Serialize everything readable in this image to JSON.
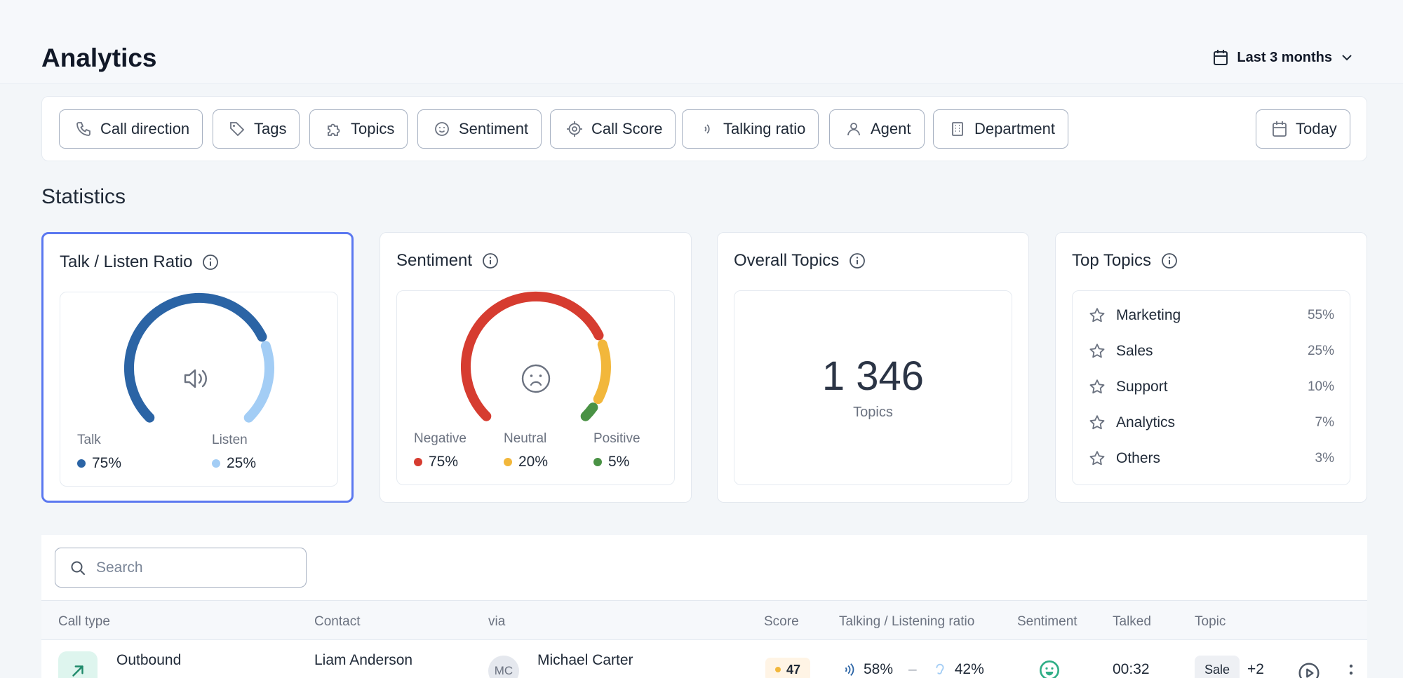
{
  "header": {
    "title": "Analytics",
    "range_label": "Last 3 months"
  },
  "filters": {
    "chips": [
      {
        "label": "Call direction",
        "icon": "phone-icon"
      },
      {
        "label": "Tags",
        "icon": "tag-icon"
      },
      {
        "label": "Topics",
        "icon": "puzzle-icon"
      },
      {
        "label": "Sentiment",
        "icon": "smiley-icon"
      },
      {
        "label": "Call Score",
        "icon": "target-icon"
      },
      {
        "label": "Talking ratio",
        "icon": "sound-waves-icon"
      },
      {
        "label": "Agent",
        "icon": "user-icon"
      },
      {
        "label": "Department",
        "icon": "building-icon"
      }
    ],
    "date_label": "Today"
  },
  "statistics": {
    "title": "Statistics",
    "talk_listen": {
      "title": "Talk / Listen Ratio",
      "talk_label": "Talk",
      "talk_value": "75%",
      "talk_fraction": 0.75,
      "listen_label": "Listen",
      "listen_value": "25%",
      "listen_fraction": 0.25,
      "colors": {
        "talk": "#2b64a5",
        "listen": "#a3cdf5"
      }
    },
    "sentiment": {
      "title": "Sentiment",
      "negative_label": "Negative",
      "negative_value": "75%",
      "negative_fraction": 0.75,
      "neutral_label": "Neutral",
      "neutral_value": "20%",
      "neutral_fraction": 0.2,
      "positive_label": "Positive",
      "positive_value": "5%",
      "positive_fraction": 0.05,
      "colors": {
        "negative": "#d63c30",
        "neutral": "#f2b73b",
        "positive": "#4a9245"
      }
    },
    "overall_topics": {
      "title": "Overall Topics",
      "value": "1 346",
      "label": "Topics"
    },
    "top_topics": {
      "title": "Top Topics",
      "items": [
        {
          "name": "Marketing",
          "pct": "55%"
        },
        {
          "name": "Sales",
          "pct": "25%"
        },
        {
          "name": "Support",
          "pct": "10%"
        },
        {
          "name": "Analytics",
          "pct": "7%"
        },
        {
          "name": "Others",
          "pct": "3%"
        }
      ]
    }
  },
  "table": {
    "search_placeholder": "Search",
    "columns": {
      "call_type": "Call type",
      "contact": "Contact",
      "via": "via",
      "score": "Score",
      "ratio": "Talking / Listening ratio",
      "sentiment": "Sentiment",
      "talked": "Talked",
      "topic": "Topic"
    },
    "rows": [
      {
        "call_type": "Outbound",
        "contact": "Liam Anderson",
        "via_initials": "MC",
        "via_name": "Michael Carter",
        "score": "47",
        "talk": "58%",
        "separator": "–",
        "listen": "42%",
        "talked": "00:32",
        "topic": "Sale",
        "topic_more": "+2"
      }
    ]
  }
}
